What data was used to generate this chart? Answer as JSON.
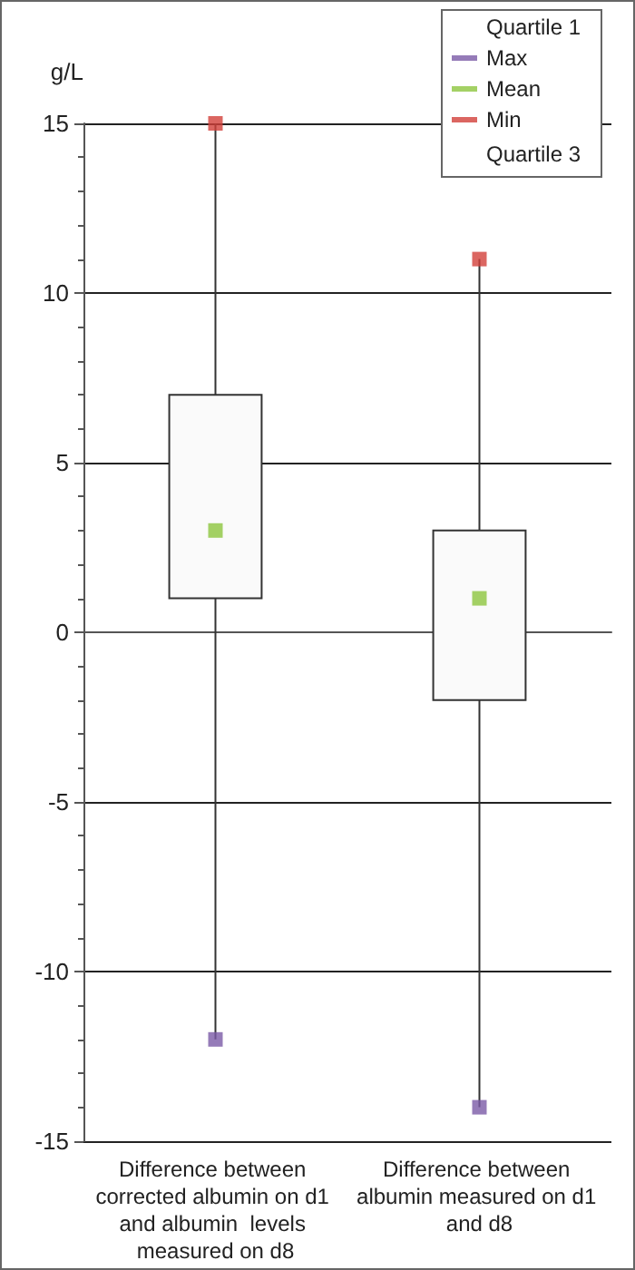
{
  "chart_data": {
    "type": "box",
    "ylabel": "g/L",
    "categories": [
      "Difference between corrected albumin on d1 and albumin  levels measured on d8",
      "Difference between albumin measured on d1 and d8"
    ],
    "boxes": [
      {
        "low": -12,
        "q1": 1,
        "q3": 7,
        "high": 15
      },
      {
        "low": -14,
        "q1": -2,
        "q3": 3,
        "high": 11
      }
    ],
    "series": [
      {
        "name": "Max",
        "type": "scatter",
        "marker": "square",
        "color": "#7b5aa6",
        "x": [
          "Difference between corrected albumin on d1 and albumin  levels measured on d8",
          "Difference between albumin measured on d1 and d8"
        ],
        "values": [
          -12,
          -14
        ]
      },
      {
        "name": "Mean",
        "type": "scatter",
        "marker": "square",
        "color": "#8dc63f",
        "x": [
          "Difference between corrected albumin on d1 and albumin  levels measured on d8",
          "Difference between albumin measured on d1 and d8"
        ],
        "values": [
          3,
          1
        ]
      },
      {
        "name": "Min",
        "type": "scatter",
        "marker": "square",
        "color": "#d2403a",
        "x": [
          "Difference between corrected albumin on d1 and albumin  levels measured on d8",
          "Difference between albumin measured on d1 and d8"
        ],
        "values": [
          15,
          11
        ]
      }
    ],
    "annotations": [
      "Quartile 1",
      "Quartile 3"
    ],
    "ylim": [
      -15,
      15
    ],
    "yticks": [
      -15,
      -10,
      -5,
      0,
      5,
      10,
      15
    ],
    "grid": "y",
    "legend": "top right"
  }
}
